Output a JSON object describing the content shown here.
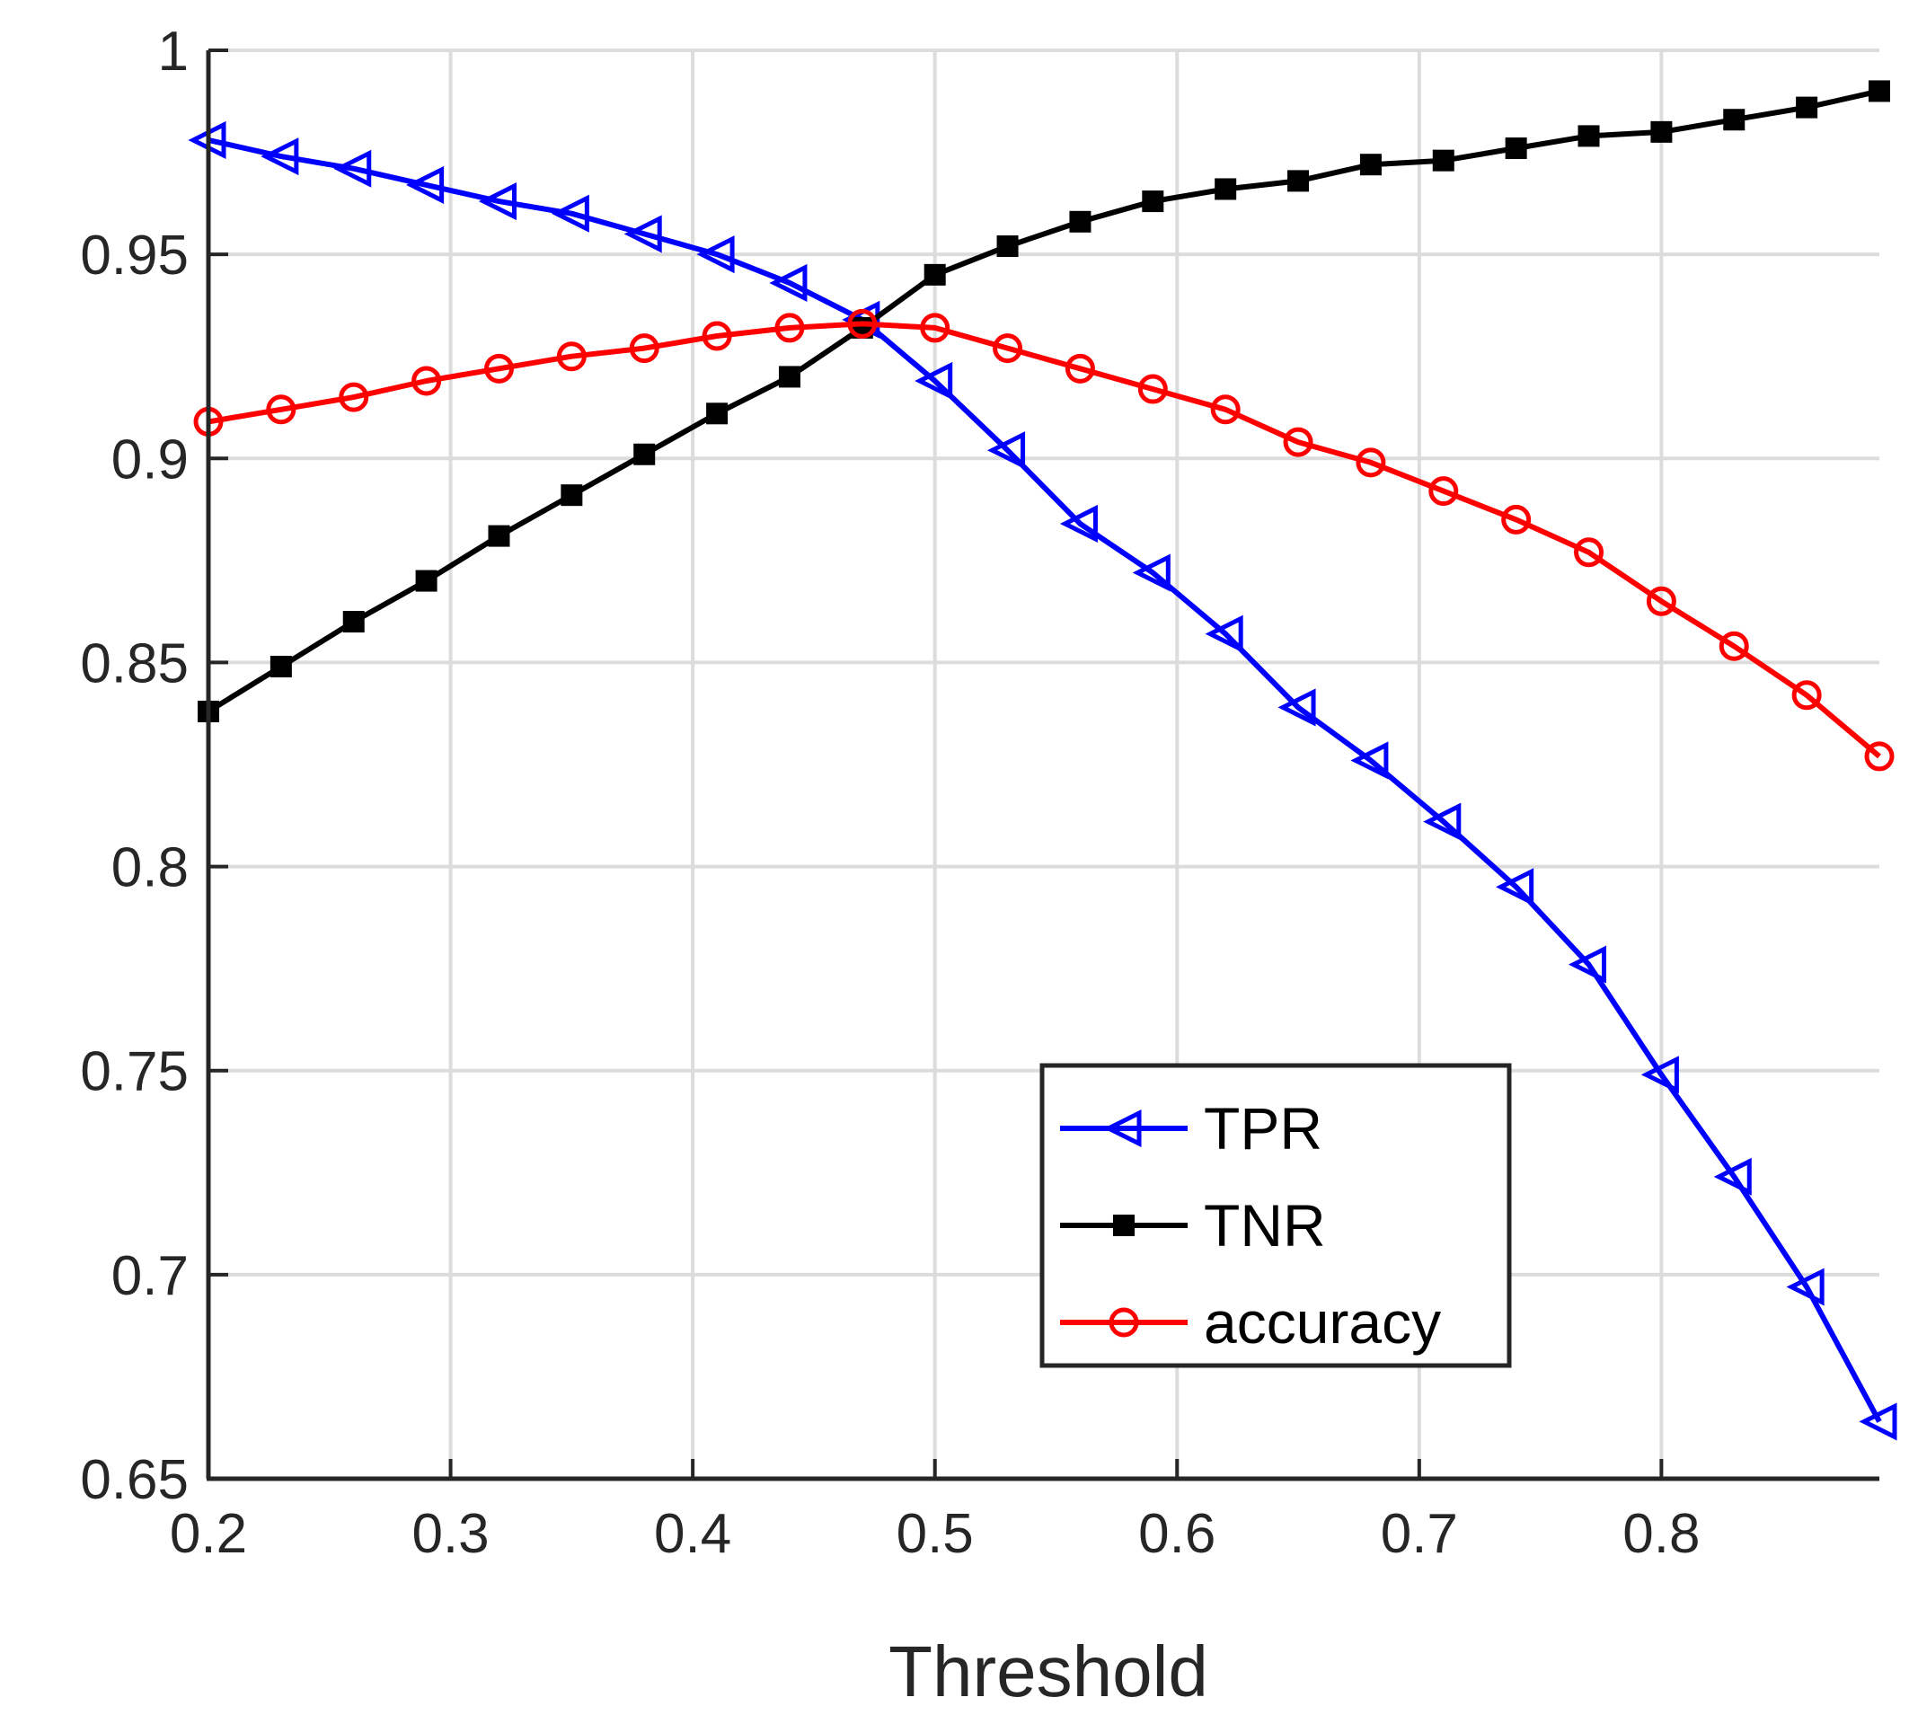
{
  "chart_data": {
    "type": "line",
    "title": "",
    "xlabel": "Threshold",
    "ylabel": "",
    "xlim": [
      0.2,
      0.89
    ],
    "ylim": [
      0.65,
      1.0
    ],
    "grid": true,
    "legend_position": "lower-right",
    "xticks": [
      {
        "value": 0.2,
        "label": "0.2"
      },
      {
        "value": 0.3,
        "label": "0.3"
      },
      {
        "value": 0.4,
        "label": "0.4"
      },
      {
        "value": 0.5,
        "label": "0.5"
      },
      {
        "value": 0.6,
        "label": "0.6"
      },
      {
        "value": 0.7,
        "label": "0.7"
      },
      {
        "value": 0.8,
        "label": "0.8"
      }
    ],
    "yticks": [
      {
        "value": 0.65,
        "label": "0.65"
      },
      {
        "value": 0.7,
        "label": "0.7"
      },
      {
        "value": 0.75,
        "label": "0.75"
      },
      {
        "value": 0.8,
        "label": "0.8"
      },
      {
        "value": 0.85,
        "label": "0.85"
      },
      {
        "value": 0.9,
        "label": "0.9"
      },
      {
        "value": 0.95,
        "label": "0.95"
      },
      {
        "value": 1.0,
        "label": "1"
      }
    ],
    "x": [
      0.2,
      0.23,
      0.26,
      0.29,
      0.32,
      0.35,
      0.38,
      0.41,
      0.44,
      0.47,
      0.5,
      0.53,
      0.56,
      0.59,
      0.62,
      0.65,
      0.68,
      0.71,
      0.74,
      0.77,
      0.8,
      0.83,
      0.86,
      0.89
    ],
    "series": [
      {
        "name": "TPR",
        "color": "#0000ff",
        "marker": "triangle-left",
        "values": [
          0.978,
          0.974,
          0.971,
          0.967,
          0.963,
          0.96,
          0.955,
          0.95,
          0.943,
          0.934,
          0.919,
          0.902,
          0.884,
          0.872,
          0.857,
          0.839,
          0.826,
          0.811,
          0.795,
          0.776,
          0.749,
          0.724,
          0.697,
          0.664
        ]
      },
      {
        "name": "TNR",
        "color": "#000000",
        "marker": "square",
        "values": [
          0.838,
          0.849,
          0.86,
          0.87,
          0.881,
          0.891,
          0.901,
          0.911,
          0.92,
          0.932,
          0.945,
          0.952,
          0.958,
          0.963,
          0.966,
          0.968,
          0.972,
          0.973,
          0.976,
          0.979,
          0.98,
          0.983,
          0.986,
          0.99
        ]
      },
      {
        "name": "accuracy",
        "color": "#ff0000",
        "marker": "circle",
        "values": [
          0.909,
          0.912,
          0.915,
          0.919,
          0.922,
          0.925,
          0.927,
          0.93,
          0.932,
          0.933,
          0.932,
          0.927,
          0.922,
          0.917,
          0.912,
          0.904,
          0.899,
          0.892,
          0.885,
          0.877,
          0.865,
          0.854,
          0.842,
          0.827
        ]
      }
    ]
  }
}
